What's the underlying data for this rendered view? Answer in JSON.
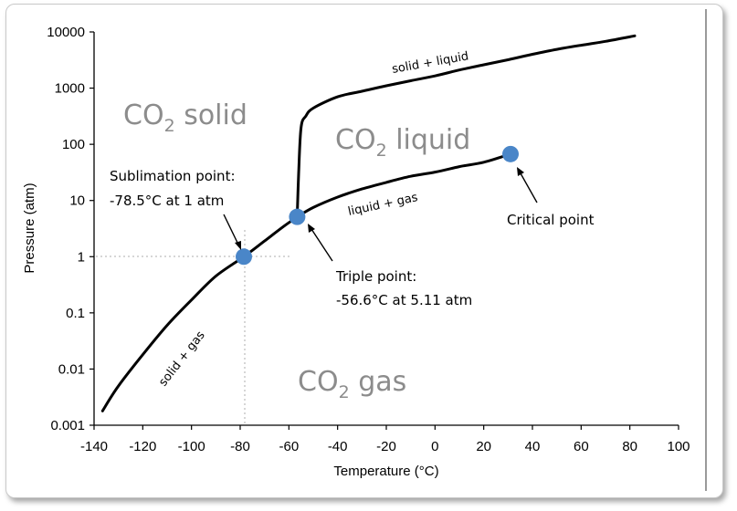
{
  "chart_data": {
    "type": "line",
    "xlabel": "Temperature (°C)",
    "ylabel": "Pressure (atm)",
    "xlim": [
      -140,
      100
    ],
    "ylim": [
      0.001,
      10000
    ],
    "yscale": "log",
    "grid": false,
    "x_ticks": [
      "-140",
      "-120",
      "-100",
      "-80",
      "-60",
      "-40",
      "-20",
      "0",
      "20",
      "40",
      "60",
      "80",
      "100"
    ],
    "y_ticks": [
      "0.001",
      "0.01",
      "0.1",
      "1",
      "10",
      "100",
      "1000",
      "10000"
    ],
    "series": [
      {
        "label": "solid + gas",
        "points": [
          [
            -136.5,
            0.0018
          ],
          [
            -130,
            0.005
          ],
          [
            -120,
            0.018
          ],
          [
            -110,
            0.06
          ],
          [
            -100,
            0.17
          ],
          [
            -90,
            0.45
          ],
          [
            -78.5,
            1
          ],
          [
            -70,
            1.9
          ],
          [
            -62,
            3.5
          ],
          [
            -56.6,
            5.11
          ]
        ]
      },
      {
        "label": "liquid + gas",
        "points": [
          [
            -56.6,
            5.11
          ],
          [
            -50,
            7.5
          ],
          [
            -40,
            11.5
          ],
          [
            -30,
            16
          ],
          [
            -20,
            21
          ],
          [
            -10,
            27
          ],
          [
            0,
            32
          ],
          [
            10,
            40
          ],
          [
            20,
            48
          ],
          [
            31,
            67
          ]
        ]
      },
      {
        "label": "solid + liquid",
        "points": [
          [
            -56.6,
            5.11
          ],
          [
            -56,
            30
          ],
          [
            -55,
            200
          ],
          [
            -53,
            320
          ],
          [
            -50,
            440
          ],
          [
            -40,
            700
          ],
          [
            -30,
            880
          ],
          [
            -20,
            1100
          ],
          [
            -10,
            1350
          ],
          [
            0,
            1650
          ],
          [
            10,
            2100
          ],
          [
            20,
            2600
          ],
          [
            30,
            3200
          ],
          [
            40,
            4000
          ],
          [
            50,
            4900
          ],
          [
            60,
            5800
          ],
          [
            70,
            6800
          ],
          [
            82,
            8500
          ]
        ]
      }
    ],
    "points": [
      {
        "name": "Sublimation point",
        "x": -78.5,
        "y": 1
      },
      {
        "name": "Triple point",
        "x": -56.6,
        "y": 5.11
      },
      {
        "name": "Critical point",
        "x": 31,
        "y": 67
      }
    ],
    "regions": [
      {
        "base": "CO",
        "sub": "2",
        "text": " solid"
      },
      {
        "base": "CO",
        "sub": "2",
        "text": " liquid"
      },
      {
        "base": "CO",
        "sub": "2",
        "text": " gas"
      }
    ],
    "annotations": {
      "sublimation": [
        "Sublimation point:",
        "-78.5°C at 1 atm"
      ],
      "triple": [
        "Triple point:",
        "-56.6°C at 5.11 atm"
      ],
      "critical": "Critical point"
    },
    "colors": {
      "curve": "#000000",
      "point": "#4a86c8",
      "region_text": "#8c8c8c",
      "guide": "#c8c8c8"
    }
  }
}
